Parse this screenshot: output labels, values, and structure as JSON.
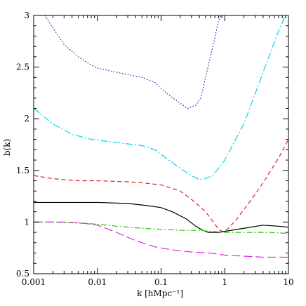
{
  "chart_data": {
    "type": "line",
    "xlabel": "k  [hMpc⁻¹]",
    "ylabel": "b(k)",
    "xscale": "log",
    "xlim": [
      0.001,
      10
    ],
    "ylim": [
      0.5,
      3
    ],
    "grid": false,
    "xticks": [
      {
        "value": 0.001,
        "label": "0.001"
      },
      {
        "value": 0.01,
        "label": "0.01"
      },
      {
        "value": 0.1,
        "label": "0.1"
      },
      {
        "value": 1,
        "label": "1"
      },
      {
        "value": 10,
        "label": "10"
      }
    ],
    "yticks": [
      {
        "value": 0.5,
        "label": "0.5"
      },
      {
        "value": 1,
        "label": "1"
      },
      {
        "value": 1.5,
        "label": "1.5"
      },
      {
        "value": 2,
        "label": "2"
      },
      {
        "value": 2.5,
        "label": "2.5"
      },
      {
        "value": 3,
        "label": "3"
      }
    ],
    "series": [
      {
        "color": "#1a1aaa",
        "dash": "1.5,2.5",
        "points": [
          [
            0.0015,
            3.0
          ],
          [
            0.002,
            2.88
          ],
          [
            0.003,
            2.72
          ],
          [
            0.005,
            2.6
          ],
          [
            0.008,
            2.52
          ],
          [
            0.01,
            2.49
          ],
          [
            0.02,
            2.45
          ],
          [
            0.05,
            2.4
          ],
          [
            0.08,
            2.35
          ],
          [
            0.12,
            2.25
          ],
          [
            0.18,
            2.17
          ],
          [
            0.26,
            2.1
          ],
          [
            0.35,
            2.13
          ],
          [
            0.42,
            2.2
          ],
          [
            0.5,
            2.4
          ],
          [
            0.65,
            2.7
          ],
          [
            0.8,
            2.95
          ],
          [
            0.87,
            3.0
          ]
        ]
      },
      {
        "color": "#00d8e8",
        "dash": "10,3,2,3",
        "points": [
          [
            0.001,
            2.1
          ],
          [
            0.002,
            1.95
          ],
          [
            0.004,
            1.85
          ],
          [
            0.008,
            1.8
          ],
          [
            0.02,
            1.77
          ],
          [
            0.05,
            1.74
          ],
          [
            0.08,
            1.7
          ],
          [
            0.12,
            1.62
          ],
          [
            0.2,
            1.52
          ],
          [
            0.3,
            1.45
          ],
          [
            0.4,
            1.41
          ],
          [
            0.5,
            1.42
          ],
          [
            0.65,
            1.45
          ],
          [
            1.0,
            1.6
          ],
          [
            2,
            1.95
          ],
          [
            4,
            2.45
          ],
          [
            7,
            2.85
          ],
          [
            9,
            3.0
          ]
        ]
      },
      {
        "color": "#e02020",
        "dash": "6,4",
        "points": [
          [
            0.001,
            1.45
          ],
          [
            0.002,
            1.42
          ],
          [
            0.005,
            1.4
          ],
          [
            0.01,
            1.4
          ],
          [
            0.03,
            1.39
          ],
          [
            0.05,
            1.38
          ],
          [
            0.1,
            1.36
          ],
          [
            0.2,
            1.3
          ],
          [
            0.3,
            1.22
          ],
          [
            0.5,
            1.1
          ],
          [
            0.7,
            0.98
          ],
          [
            0.8,
            0.93
          ],
          [
            0.9,
            0.91
          ],
          [
            1.1,
            0.93
          ],
          [
            1.5,
            1.02
          ],
          [
            2.5,
            1.2
          ],
          [
            4,
            1.38
          ],
          [
            7,
            1.62
          ],
          [
            10,
            1.8
          ]
        ]
      },
      {
        "color": "#000000",
        "dash": "",
        "points": [
          [
            0.001,
            1.19
          ],
          [
            0.01,
            1.19
          ],
          [
            0.03,
            1.18
          ],
          [
            0.06,
            1.16
          ],
          [
            0.1,
            1.14
          ],
          [
            0.15,
            1.1
          ],
          [
            0.25,
            1.03
          ],
          [
            0.35,
            0.96
          ],
          [
            0.45,
            0.92
          ],
          [
            0.55,
            0.9
          ],
          [
            0.65,
            0.9
          ],
          [
            0.8,
            0.9
          ],
          [
            1.0,
            0.91
          ],
          [
            2.0,
            0.94
          ],
          [
            4.0,
            0.97
          ],
          [
            7.0,
            0.96
          ],
          [
            10,
            0.95
          ]
        ]
      },
      {
        "color": "#22cc00",
        "dash": "8,3,2,3",
        "points": [
          [
            0.001,
            1.0
          ],
          [
            0.002,
            1.0
          ],
          [
            0.005,
            0.99
          ],
          [
            0.01,
            0.98
          ],
          [
            0.02,
            0.96
          ],
          [
            0.05,
            0.94
          ],
          [
            0.1,
            0.93
          ],
          [
            0.2,
            0.92
          ],
          [
            0.4,
            0.92
          ],
          [
            0.6,
            0.91
          ],
          [
            1.0,
            0.9
          ],
          [
            2.0,
            0.9
          ],
          [
            5.0,
            0.9
          ],
          [
            10,
            0.89
          ]
        ]
      },
      {
        "color": "#e020e0",
        "dash": "12,5",
        "points": [
          [
            0.001,
            1.0
          ],
          [
            0.003,
            1.0
          ],
          [
            0.006,
            0.99
          ],
          [
            0.01,
            0.97
          ],
          [
            0.02,
            0.9
          ],
          [
            0.04,
            0.82
          ],
          [
            0.08,
            0.76
          ],
          [
            0.15,
            0.73
          ],
          [
            0.3,
            0.71
          ],
          [
            0.6,
            0.7
          ],
          [
            1.0,
            0.68
          ],
          [
            2,
            0.67
          ],
          [
            4,
            0.66
          ],
          [
            7,
            0.66
          ],
          [
            10,
            0.66
          ]
        ]
      }
    ]
  }
}
